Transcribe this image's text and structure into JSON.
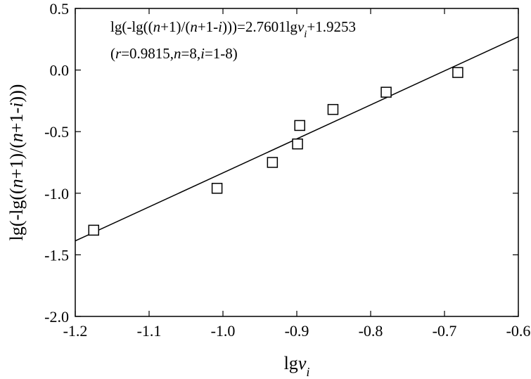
{
  "chart_data": {
    "type": "scatter",
    "title": "",
    "xlabel": "lgv_i",
    "ylabel": "lg(-lg((n+1)/(n+1-i)))",
    "xlim": [
      -1.2,
      -0.6
    ],
    "ylim": [
      -2.0,
      0.5
    ],
    "xticks": [
      -1.2,
      -1.1,
      -1.0,
      -0.9,
      -0.8,
      -0.7,
      -0.6
    ],
    "yticks": [
      -2.0,
      -1.5,
      -1.0,
      -0.5,
      0.0,
      0.5
    ],
    "xtick_labels": [
      "-1.2",
      "-1.1",
      "-1.0",
      "-0.9",
      "-0.8",
      "-0.7",
      "-0.6"
    ],
    "ytick_labels": [
      "-2.0",
      "-1.5",
      "-1.0",
      "-0.5",
      "0.0",
      "0.5"
    ],
    "grid": false,
    "points": [
      {
        "x": -1.175,
        "y": -1.3
      },
      {
        "x": -1.008,
        "y": -0.96
      },
      {
        "x": -0.933,
        "y": -0.75
      },
      {
        "x": -0.899,
        "y": -0.6
      },
      {
        "x": -0.896,
        "y": -0.45
      },
      {
        "x": -0.851,
        "y": -0.32
      },
      {
        "x": -0.779,
        "y": -0.18
      },
      {
        "x": -0.682,
        "y": -0.02
      }
    ],
    "fit_line": {
      "slope": 2.7601,
      "intercept": 1.9253
    },
    "annotations": [
      {
        "segments": [
          {
            "t": "lg(-lg(("
          },
          {
            "t": "n",
            "i": true
          },
          {
            "t": "+1)/("
          },
          {
            "t": "n",
            "i": true
          },
          {
            "t": "+1-"
          },
          {
            "t": "i",
            "i": true
          },
          {
            "t": ")))=2.7601lg"
          },
          {
            "t": "v",
            "i": true
          },
          {
            "t": "i",
            "i": true,
            "sub": true
          },
          {
            "t": "+1.9253"
          }
        ]
      },
      {
        "segments": [
          {
            "t": "("
          },
          {
            "t": "r",
            "i": true
          },
          {
            "t": "=0.9815,"
          },
          {
            "t": "n",
            "i": true
          },
          {
            "t": "=8,"
          },
          {
            "t": "i",
            "i": true
          },
          {
            "t": "=1-8)"
          }
        ]
      }
    ],
    "xlabel_segments": [
      {
        "t": "lg"
      },
      {
        "t": "v",
        "i": true
      },
      {
        "t": "i",
        "i": true,
        "sub": true
      }
    ],
    "ylabel_segments": [
      {
        "t": "lg(-lg(("
      },
      {
        "t": "n",
        "i": true
      },
      {
        "t": "+1)/("
      },
      {
        "t": "n",
        "i": true
      },
      {
        "t": "+1-"
      },
      {
        "t": "i",
        "i": true
      },
      {
        "t": ")))"
      }
    ]
  }
}
